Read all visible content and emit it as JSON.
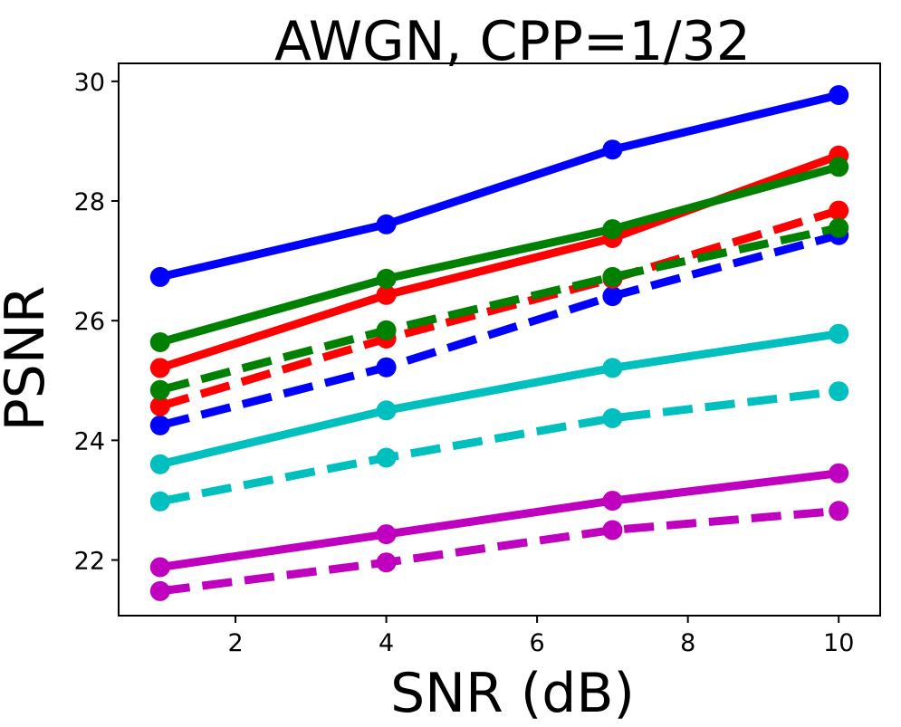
{
  "chart_data": {
    "type": "line",
    "title": "AWGN, CPP=1/32",
    "xlabel": "SNR (dB)",
    "ylabel": "PSNR",
    "xlim": [
      0.45,
      10.55
    ],
    "ylim": [
      21.07,
      30.3
    ],
    "x": [
      1,
      4,
      7,
      10
    ],
    "xticks": [
      2,
      4,
      6,
      8,
      10
    ],
    "yticks": [
      22,
      24,
      26,
      28,
      30
    ],
    "grid": false,
    "legend": "none",
    "series": [
      {
        "name": "blue solid",
        "color": "#0000ff",
        "dashed": false,
        "values": [
          26.73,
          27.61,
          28.86,
          29.77
        ]
      },
      {
        "name": "red solid",
        "color": "#ff0000",
        "dashed": false,
        "values": [
          25.21,
          26.43,
          27.38,
          28.76
        ]
      },
      {
        "name": "green solid",
        "color": "#008000",
        "dashed": false,
        "values": [
          25.64,
          26.7,
          27.53,
          28.57
        ]
      },
      {
        "name": "blue dashed",
        "color": "#0000ff",
        "dashed": true,
        "values": [
          24.25,
          25.22,
          26.41,
          27.43
        ]
      },
      {
        "name": "red dashed",
        "color": "#ff0000",
        "dashed": true,
        "values": [
          24.57,
          25.7,
          26.7,
          27.84
        ]
      },
      {
        "name": "green dashed",
        "color": "#008000",
        "dashed": true,
        "values": [
          24.84,
          25.84,
          26.73,
          27.55
        ]
      },
      {
        "name": "cyan solid",
        "color": "#00bfbf",
        "dashed": false,
        "values": [
          23.6,
          24.5,
          25.21,
          25.78
        ]
      },
      {
        "name": "cyan dashed",
        "color": "#00bfbf",
        "dashed": true,
        "values": [
          22.98,
          23.71,
          24.37,
          24.82
        ]
      },
      {
        "name": "magenta solid",
        "color": "#bf00bf",
        "dashed": false,
        "values": [
          21.88,
          22.43,
          22.99,
          23.45
        ]
      },
      {
        "name": "magenta dashed",
        "color": "#bf00bf",
        "dashed": true,
        "values": [
          21.48,
          21.96,
          22.5,
          22.82
        ]
      }
    ]
  }
}
